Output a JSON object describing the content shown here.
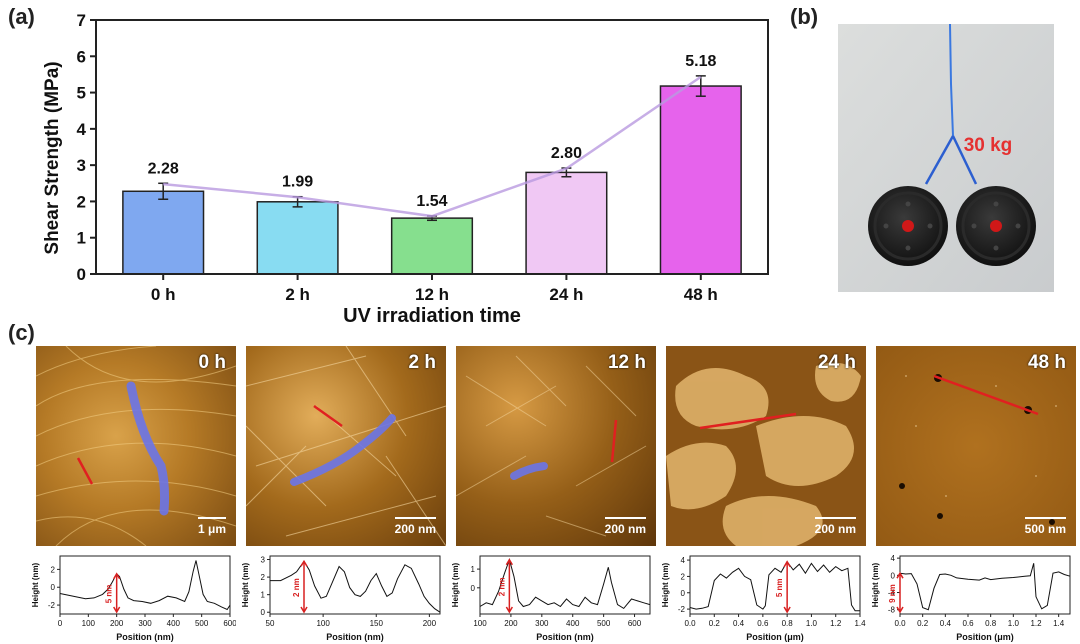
{
  "panel_labels": {
    "a": "(a)",
    "b": "(b)",
    "c": "(c)"
  },
  "chart_data": {
    "type": "bar",
    "title": "",
    "xlabel": "UV irradiation time",
    "ylabel": "Shear Strength (MPa)",
    "ylim": [
      0,
      7
    ],
    "yticks": [
      "0",
      "1",
      "2",
      "3",
      "4",
      "5",
      "6",
      "7"
    ],
    "categories": [
      "0 h",
      "2 h",
      "12 h",
      "24 h",
      "48 h"
    ],
    "values": [
      2.28,
      1.99,
      1.54,
      2.8,
      5.18
    ],
    "value_labels": [
      "2.28",
      "1.99",
      "1.54",
      "2.80",
      "5.18"
    ],
    "errors": [
      0.22,
      0.14,
      0.06,
      0.12,
      0.28
    ],
    "colors": [
      "#7fa8f0",
      "#88dcf2",
      "#86df8e",
      "#f0c8f4",
      "#e663ec"
    ]
  },
  "photo": {
    "weight_label": "30 kg",
    "weight_color": "#e53030"
  },
  "afm_panels": [
    {
      "time": "0 h",
      "scale": "1 μm"
    },
    {
      "time": "2 h",
      "scale": "200 nm"
    },
    {
      "time": "12 h",
      "scale": "200 nm"
    },
    {
      "time": "24 h",
      "scale": "200 nm"
    },
    {
      "time": "48 h",
      "scale": "500 nm"
    }
  ],
  "profiles": [
    {
      "ylabel": "Height (nm)",
      "xlabel": "Position (nm)",
      "annotation": "5 nm",
      "xticks": [
        "0",
        "100",
        "200",
        "300",
        "400",
        "500",
        "600"
      ],
      "xlim": [
        0,
        600
      ],
      "yticks": [
        "2",
        "0",
        "-2"
      ],
      "ylim": [
        -3,
        3.5
      ],
      "points": [
        [
          0,
          -0.7
        ],
        [
          30,
          -0.9
        ],
        [
          60,
          -1.1
        ],
        [
          90,
          -1.3
        ],
        [
          120,
          -1.2
        ],
        [
          150,
          -0.8
        ],
        [
          170,
          -0.2
        ],
        [
          185,
          0.6
        ],
        [
          200,
          1.5
        ],
        [
          210,
          1.2
        ],
        [
          225,
          -0.2
        ],
        [
          240,
          -1.2
        ],
        [
          260,
          -1.5
        ],
        [
          290,
          -1.6
        ],
        [
          320,
          -1.8
        ],
        [
          350,
          -1.5
        ],
        [
          380,
          -1.0
        ],
        [
          410,
          -1.2
        ],
        [
          440,
          -1.6
        ],
        [
          455,
          -0.5
        ],
        [
          470,
          1.8
        ],
        [
          480,
          3.0
        ],
        [
          490,
          1.5
        ],
        [
          505,
          -0.8
        ],
        [
          520,
          -1.6
        ],
        [
          545,
          -1.8
        ],
        [
          570,
          -2.2
        ],
        [
          590,
          -2.5
        ],
        [
          600,
          -2.0
        ]
      ]
    },
    {
      "ylabel": "Height (nm)",
      "xlabel": "Position (nm)",
      "annotation": "2 nm",
      "xticks": [
        "50",
        "100",
        "150",
        "200"
      ],
      "xlim": [
        50,
        210
      ],
      "yticks": [
        "3",
        "2",
        "1",
        "0"
      ],
      "ylim": [
        -0.1,
        3.2
      ],
      "points": [
        [
          50,
          1.8
        ],
        [
          60,
          1.8
        ],
        [
          70,
          2.1
        ],
        [
          75,
          2.3
        ],
        [
          82,
          2.9
        ],
        [
          87,
          2.4
        ],
        [
          92,
          1.5
        ],
        [
          98,
          0.8
        ],
        [
          103,
          0.9
        ],
        [
          108,
          1.6
        ],
        [
          115,
          2.6
        ],
        [
          120,
          2.3
        ],
        [
          125,
          1.4
        ],
        [
          130,
          1.0
        ],
        [
          135,
          0.9
        ],
        [
          140,
          1.2
        ],
        [
          145,
          1.8
        ],
        [
          150,
          2.2
        ],
        [
          155,
          1.5
        ],
        [
          160,
          0.9
        ],
        [
          165,
          1.1
        ],
        [
          170,
          1.9
        ],
        [
          177,
          2.7
        ],
        [
          183,
          2.5
        ],
        [
          190,
          1.6
        ],
        [
          195,
          0.9
        ],
        [
          200,
          0.5
        ],
        [
          205,
          0.2
        ],
        [
          210,
          0.0
        ]
      ]
    },
    {
      "ylabel": "Height (nm)",
      "xlabel": "Position (nm)",
      "annotation": "2 nm",
      "xticks": [
        "100",
        "200",
        "300",
        "400",
        "500",
        "600"
      ],
      "xlim": [
        100,
        650
      ],
      "yticks": [
        "1",
        "0"
      ],
      "ylim": [
        -1.4,
        1.7
      ],
      "points": [
        [
          100,
          -1.0
        ],
        [
          120,
          -0.8
        ],
        [
          140,
          -0.9
        ],
        [
          160,
          -0.2
        ],
        [
          180,
          0.8
        ],
        [
          195,
          1.5
        ],
        [
          210,
          0.6
        ],
        [
          225,
          -0.7
        ],
        [
          240,
          -1.0
        ],
        [
          260,
          -0.9
        ],
        [
          280,
          -0.5
        ],
        [
          300,
          -0.7
        ],
        [
          320,
          -0.9
        ],
        [
          340,
          -0.8
        ],
        [
          360,
          -1.0
        ],
        [
          380,
          -0.6
        ],
        [
          400,
          -0.9
        ],
        [
          420,
          -1.0
        ],
        [
          440,
          -0.5
        ],
        [
          460,
          -0.8
        ],
        [
          480,
          -0.9
        ],
        [
          500,
          0.2
        ],
        [
          515,
          1.1
        ],
        [
          525,
          0.3
        ],
        [
          545,
          -0.9
        ],
        [
          565,
          -1.1
        ],
        [
          590,
          -0.6
        ],
        [
          610,
          -0.7
        ],
        [
          630,
          -0.8
        ],
        [
          650,
          -0.9
        ]
      ]
    },
    {
      "ylabel": "Height (nm)",
      "xlabel": "Position (μm)",
      "annotation": "5 nm",
      "xticks": [
        "0.0",
        "0.2",
        "0.4",
        "0.6",
        "0.8",
        "1.0",
        "1.2",
        "1.4"
      ],
      "xlim": [
        0,
        1.4
      ],
      "yticks": [
        "4",
        "2",
        "0",
        "-2"
      ],
      "ylim": [
        -2.6,
        4.5
      ],
      "points": [
        [
          0,
          -1.8
        ],
        [
          0.05,
          -2.0
        ],
        [
          0.1,
          -1.9
        ],
        [
          0.15,
          -1.7
        ],
        [
          0.2,
          1.5
        ],
        [
          0.25,
          2.3
        ],
        [
          0.3,
          1.8
        ],
        [
          0.35,
          2.5
        ],
        [
          0.4,
          3.0
        ],
        [
          0.45,
          2.0
        ],
        [
          0.5,
          1.6
        ],
        [
          0.55,
          -1.5
        ],
        [
          0.6,
          -2.0
        ],
        [
          0.62,
          -1.6
        ],
        [
          0.65,
          2.2
        ],
        [
          0.7,
          3.0
        ],
        [
          0.75,
          2.5
        ],
        [
          0.8,
          3.8
        ],
        [
          0.85,
          2.8
        ],
        [
          0.9,
          3.5
        ],
        [
          0.95,
          2.4
        ],
        [
          1.0,
          3.6
        ],
        [
          1.05,
          2.6
        ],
        [
          1.1,
          3.4
        ],
        [
          1.15,
          2.5
        ],
        [
          1.2,
          3.2
        ],
        [
          1.25,
          2.7
        ],
        [
          1.3,
          3.0
        ],
        [
          1.33,
          -1.5
        ],
        [
          1.36,
          -2.2
        ],
        [
          1.4,
          -2.2
        ]
      ]
    },
    {
      "ylabel": "Height (nm)",
      "xlabel": "Position (μm)",
      "annotation": "9 nm",
      "xticks": [
        "0.0",
        "0.2",
        "0.4",
        "0.6",
        "0.8",
        "1.0",
        "1.2",
        "1.4"
      ],
      "xlim": [
        0,
        1.5
      ],
      "yticks": [
        "4",
        "0",
        "-4",
        "-8"
      ],
      "ylim": [
        -9,
        4.5
      ],
      "points": [
        [
          0,
          0.5
        ],
        [
          0.05,
          0.3
        ],
        [
          0.1,
          0.4
        ],
        [
          0.15,
          -2.0
        ],
        [
          0.2,
          -7.5
        ],
        [
          0.25,
          -8.0
        ],
        [
          0.3,
          -3.0
        ],
        [
          0.35,
          0.2
        ],
        [
          0.4,
          0.3
        ],
        [
          0.45,
          0.0
        ],
        [
          0.5,
          -0.6
        ],
        [
          0.6,
          -0.9
        ],
        [
          0.7,
          -1.1
        ],
        [
          0.75,
          -0.6
        ],
        [
          0.8,
          -1.0
        ],
        [
          0.9,
          -0.7
        ],
        [
          1.0,
          -0.5
        ],
        [
          1.1,
          -0.2
        ],
        [
          1.15,
          -0.1
        ],
        [
          1.18,
          2.8
        ],
        [
          1.2,
          -5.0
        ],
        [
          1.25,
          -7.8
        ],
        [
          1.3,
          -7.0
        ],
        [
          1.35,
          0.5
        ],
        [
          1.4,
          0.8
        ],
        [
          1.45,
          0.2
        ],
        [
          1.5,
          -0.2
        ]
      ]
    }
  ]
}
